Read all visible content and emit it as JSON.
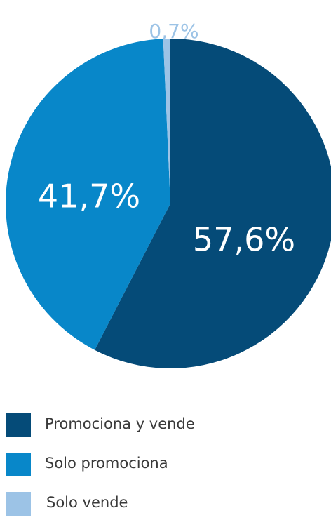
{
  "chart_data": {
    "type": "pie",
    "title": "",
    "slices": [
      {
        "label": "Promociona y vende",
        "value": 57.6,
        "display": "57,6%",
        "color": "#054b78"
      },
      {
        "label": "Solo promociona",
        "value": 41.7,
        "display": "41,7%",
        "color": "#0887c9"
      },
      {
        "label": "Solo vende",
        "value": 0.7,
        "display": "0,7%",
        "color": "#9cc3e6"
      }
    ],
    "start_angle_deg": 0,
    "direction": "clockwise",
    "legend": {
      "position": "bottom-left",
      "items": [
        {
          "label": "Promociona y vende",
          "color": "#054b78"
        },
        {
          "label": "Solo promociona",
          "color": "#0887c9"
        },
        {
          "label": "Solo vende",
          "color": "#9cc3e6"
        }
      ]
    }
  }
}
